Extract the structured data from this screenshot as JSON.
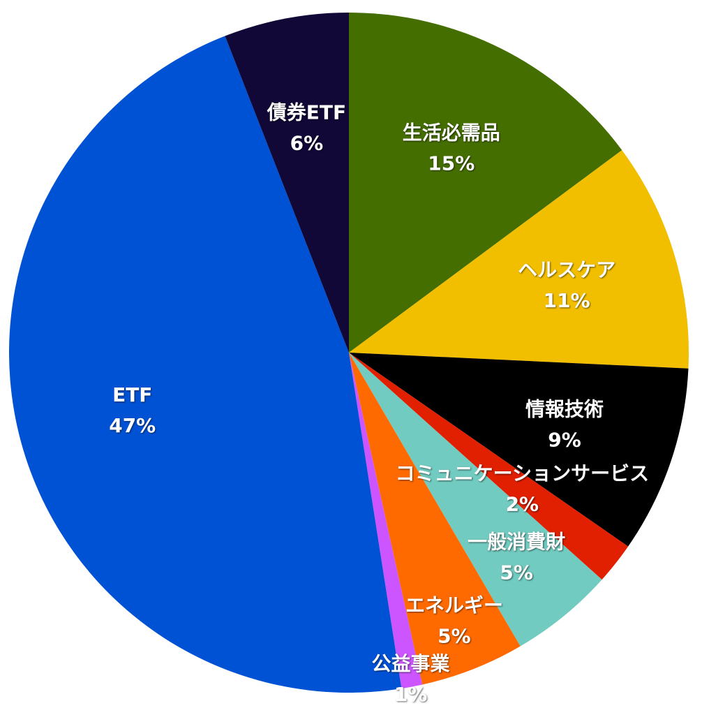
{
  "chart_data": {
    "type": "pie",
    "categories": [
      "生活必需品",
      "ヘルスケア",
      "情報技術",
      "コミュニケーションサービス",
      "一般消費財",
      "エネルギー",
      "公益事業",
      "ETF",
      "債券ETF"
    ],
    "values": [
      15,
      11,
      9,
      2,
      5,
      5,
      1,
      47,
      6
    ],
    "value_labels": [
      "15%",
      "11%",
      "9%",
      "2%",
      "5%",
      "5%",
      "1%",
      "47%",
      "6%"
    ],
    "colors": [
      "#456e00",
      "#f2bf00",
      "#000000",
      "#e02000",
      "#72cbc0",
      "#ff6a00",
      "#cc55ff",
      "#0052d4",
      "#120838"
    ]
  }
}
